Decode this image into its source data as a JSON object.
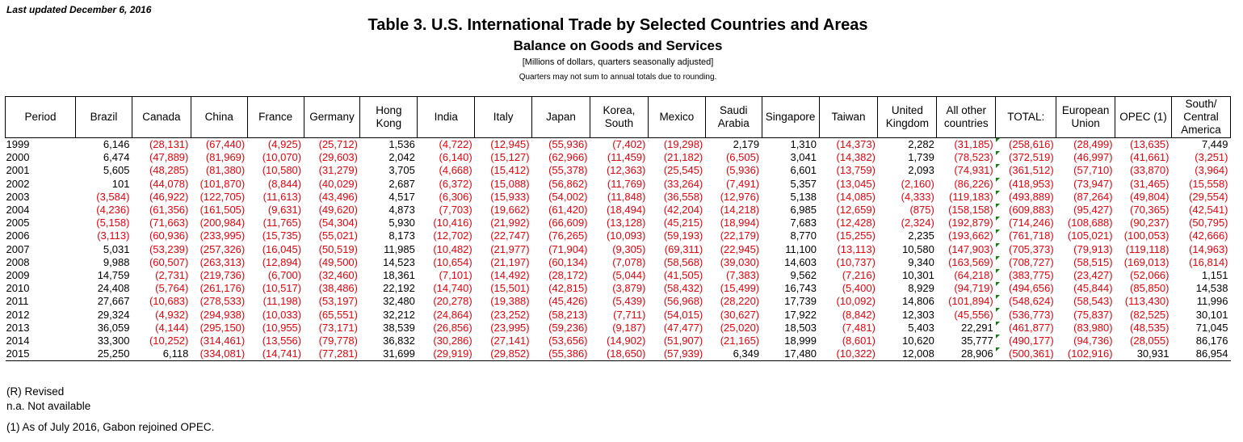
{
  "last_updated": "Last updated December 6, 2016",
  "title": "Table 3. U.S. International Trade by Selected Countries and Areas",
  "subtitle": "Balance on Goods and Services",
  "units": "[Millions of dollars, quarters seasonally adjusted]",
  "note": "Quarters may not sum to annual totals due to rounding.",
  "columns": [
    "Period",
    "Brazil",
    "Canada",
    "China",
    "France",
    "Germany",
    "Hong Kong",
    "India",
    "Italy",
    "Japan",
    "Korea, South",
    "Mexico",
    "Saudi Arabia",
    "Singapore",
    "Taiwan",
    "United Kingdom",
    "All other countries",
    "TOTAL:",
    "European Union",
    "OPEC (1)",
    "South/ Central America"
  ],
  "rows": [
    [
      "1999",
      "6,146",
      "(28,131)",
      "(67,440)",
      "(4,925)",
      "(25,712)",
      "1,536",
      "(4,722)",
      "(12,945)",
      "(55,936)",
      "(7,402)",
      "(19,298)",
      "2,179",
      "1,310",
      "(14,373)",
      "2,282",
      "(31,185)",
      "(258,616)",
      "(28,499)",
      "(13,635)",
      "7,449"
    ],
    [
      "2000",
      "6,474",
      "(47,889)",
      "(81,969)",
      "(10,070)",
      "(29,603)",
      "2,042",
      "(6,140)",
      "(15,127)",
      "(62,966)",
      "(11,459)",
      "(21,182)",
      "(6,505)",
      "3,041",
      "(14,382)",
      "1,739",
      "(78,523)",
      "(372,519)",
      "(46,997)",
      "(41,661)",
      "(3,251)"
    ],
    [
      "2001",
      "5,605",
      "(48,285)",
      "(81,380)",
      "(10,580)",
      "(31,279)",
      "3,705",
      "(4,668)",
      "(15,412)",
      "(55,378)",
      "(12,363)",
      "(25,545)",
      "(5,936)",
      "6,601",
      "(13,759)",
      "2,093",
      "(74,931)",
      "(361,512)",
      "(57,710)",
      "(33,870)",
      "(3,964)"
    ],
    [
      "2002",
      "101",
      "(44,078)",
      "(101,870)",
      "(8,844)",
      "(40,029)",
      "2,687",
      "(6,372)",
      "(15,088)",
      "(56,862)",
      "(11,769)",
      "(33,264)",
      "(7,491)",
      "5,357",
      "(13,045)",
      "(2,160)",
      "(86,226)",
      "(418,953)",
      "(73,947)",
      "(31,465)",
      "(15,558)"
    ],
    [
      "2003",
      "(3,584)",
      "(46,922)",
      "(122,705)",
      "(11,613)",
      "(43,496)",
      "4,517",
      "(6,306)",
      "(15,933)",
      "(54,002)",
      "(11,848)",
      "(36,558)",
      "(12,976)",
      "5,138",
      "(14,085)",
      "(4,333)",
      "(119,183)",
      "(493,889)",
      "(87,264)",
      "(49,804)",
      "(29,554)"
    ],
    [
      "2004",
      "(4,236)",
      "(61,356)",
      "(161,505)",
      "(9,631)",
      "(49,620)",
      "4,873",
      "(7,703)",
      "(19,662)",
      "(61,420)",
      "(18,494)",
      "(42,204)",
      "(14,218)",
      "6,985",
      "(12,659)",
      "(875)",
      "(158,158)",
      "(609,883)",
      "(95,427)",
      "(70,365)",
      "(42,541)"
    ],
    [
      "2005",
      "(5,158)",
      "(71,663)",
      "(200,984)",
      "(11,765)",
      "(54,304)",
      "5,930",
      "(10,416)",
      "(21,992)",
      "(66,609)",
      "(13,128)",
      "(45,215)",
      "(18,994)",
      "7,683",
      "(12,428)",
      "(2,324)",
      "(192,879)",
      "(714,246)",
      "(108,688)",
      "(90,237)",
      "(50,795)"
    ],
    [
      "2006",
      "(3,113)",
      "(60,936)",
      "(233,995)",
      "(15,735)",
      "(55,021)",
      "8,173",
      "(12,702)",
      "(22,747)",
      "(76,265)",
      "(10,093)",
      "(59,193)",
      "(22,179)",
      "8,770",
      "(15,255)",
      "2,235",
      "(193,662)",
      "(761,718)",
      "(105,021)",
      "(100,053)",
      "(42,666)"
    ],
    [
      "2007",
      "5,031",
      "(53,239)",
      "(257,326)",
      "(16,045)",
      "(50,519)",
      "11,985",
      "(10,482)",
      "(21,977)",
      "(71,904)",
      "(9,305)",
      "(69,311)",
      "(22,945)",
      "11,100",
      "(13,113)",
      "10,580",
      "(147,903)",
      "(705,373)",
      "(79,913)",
      "(119,118)",
      "(14,963)"
    ],
    [
      "2008",
      "9,988",
      "(60,507)",
      "(263,313)",
      "(12,894)",
      "(49,500)",
      "14,523",
      "(10,654)",
      "(21,197)",
      "(60,134)",
      "(7,078)",
      "(58,568)",
      "(39,030)",
      "14,603",
      "(10,737)",
      "9,340",
      "(163,569)",
      "(708,727)",
      "(58,515)",
      "(169,013)",
      "(16,814)"
    ],
    [
      "2009",
      "14,759",
      "(2,731)",
      "(219,736)",
      "(6,700)",
      "(32,460)",
      "18,361",
      "(7,101)",
      "(14,492)",
      "(28,172)",
      "(5,044)",
      "(41,505)",
      "(7,383)",
      "9,562",
      "(7,216)",
      "10,301",
      "(64,218)",
      "(383,775)",
      "(23,427)",
      "(52,066)",
      "1,151"
    ],
    [
      "2010",
      "24,408",
      "(5,764)",
      "(261,176)",
      "(10,517)",
      "(38,486)",
      "22,192",
      "(14,740)",
      "(15,501)",
      "(42,815)",
      "(3,879)",
      "(58,432)",
      "(15,499)",
      "16,743",
      "(5,400)",
      "8,929",
      "(94,719)",
      "(494,656)",
      "(45,844)",
      "(85,850)",
      "14,538"
    ],
    [
      "2011",
      "27,667",
      "(10,683)",
      "(278,533)",
      "(11,198)",
      "(53,197)",
      "32,480",
      "(20,278)",
      "(19,388)",
      "(45,426)",
      "(5,439)",
      "(56,968)",
      "(28,220)",
      "17,739",
      "(10,092)",
      "14,806",
      "(101,894)",
      "(548,624)",
      "(58,543)",
      "(113,430)",
      "11,996"
    ],
    [
      "2012",
      "29,324",
      "(4,932)",
      "(294,938)",
      "(10,033)",
      "(65,551)",
      "32,212",
      "(24,864)",
      "(23,252)",
      "(58,213)",
      "(7,711)",
      "(54,015)",
      "(30,627)",
      "17,922",
      "(8,842)",
      "12,303",
      "(45,556)",
      "(536,773)",
      "(75,837)",
      "(82,525)",
      "30,101"
    ],
    [
      "2013",
      "36,059",
      "(4,144)",
      "(295,150)",
      "(10,955)",
      "(73,171)",
      "38,539",
      "(26,856)",
      "(23,995)",
      "(59,236)",
      "(9,187)",
      "(47,477)",
      "(25,020)",
      "18,503",
      "(7,481)",
      "5,403",
      "22,291",
      "(461,877)",
      "(83,980)",
      "(48,535)",
      "71,045"
    ],
    [
      "2014",
      "33,300",
      "(10,252)",
      "(314,461)",
      "(13,556)",
      "(79,778)",
      "36,832",
      "(30,286)",
      "(27,141)",
      "(53,656)",
      "(14,902)",
      "(51,907)",
      "(21,165)",
      "18,999",
      "(8,601)",
      "10,620",
      "35,777",
      "(490,177)",
      "(94,736)",
      "(28,055)",
      "86,176"
    ],
    [
      "2015",
      "25,250",
      "6,118",
      "(334,081)",
      "(14,741)",
      "(77,281)",
      "31,699",
      "(29,919)",
      "(29,852)",
      "(55,386)",
      "(18,650)",
      "(57,939)",
      "6,349",
      "17,480",
      "(10,322)",
      "12,008",
      "28,906",
      "(500,361)",
      "(102,916)",
      "30,931",
      "86,954"
    ]
  ],
  "footnotes": [
    "(R) Revised",
    "n.a. Not available",
    "(1) As of July 2016, Gabon rejoined OPEC."
  ]
}
